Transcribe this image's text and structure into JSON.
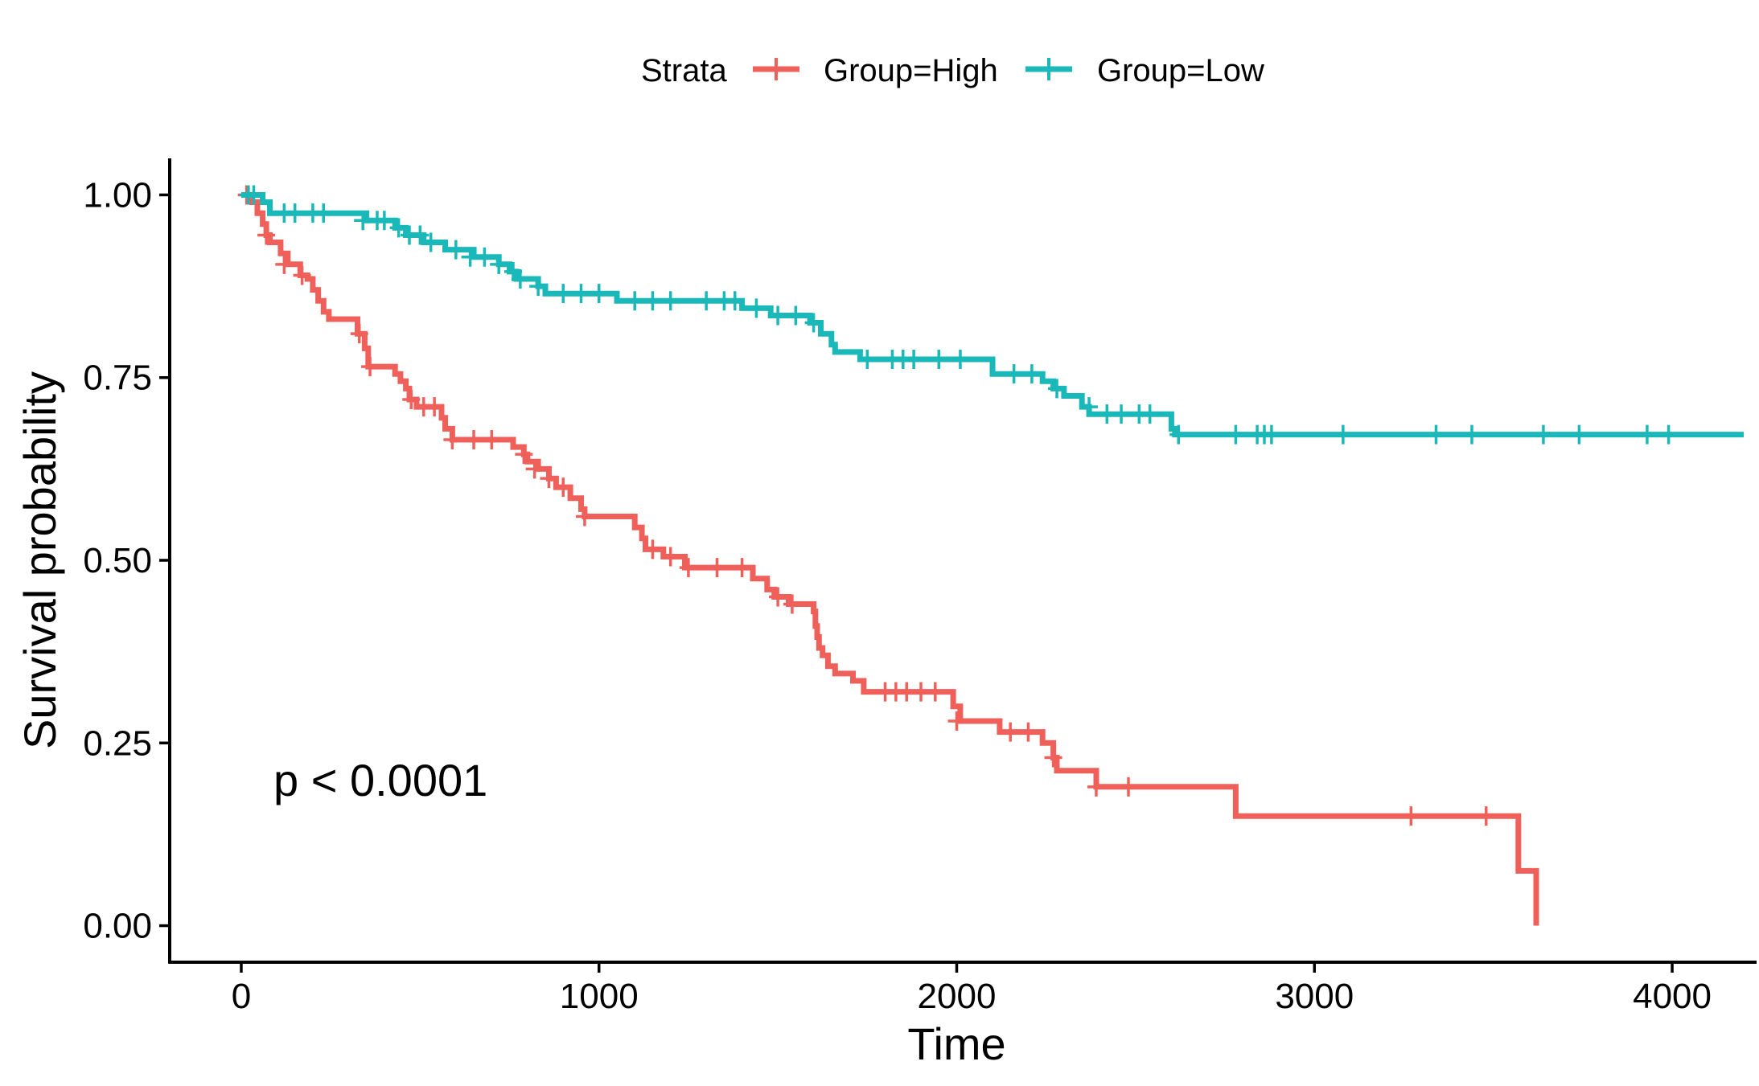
{
  "chart_data": {
    "type": "line",
    "subtype": "kaplan-meier step curve",
    "xlabel": "Time",
    "ylabel": "Survival probability",
    "xlim": [
      -200,
      4200
    ],
    "ylim": [
      -0.05,
      1.05
    ],
    "xticks": [
      0,
      1000,
      2000,
      3000,
      4000
    ],
    "xtick_labels": [
      "0",
      "1000",
      "2000",
      "3000",
      "4000"
    ],
    "yticks": [
      0,
      0.25,
      0.5,
      0.75,
      1.0
    ],
    "ytick_labels": [
      "0.00",
      "0.25",
      "0.50",
      "0.75",
      "1.00"
    ],
    "grid": false,
    "legend": {
      "title": "Strata",
      "position": "top"
    },
    "annotation": "p < 0.0001",
    "series": [
      {
        "name": "Group=High",
        "color": "#F0605A",
        "steps": [
          [
            0,
            1.0
          ],
          [
            30,
            0.99
          ],
          [
            45,
            0.975
          ],
          [
            60,
            0.96
          ],
          [
            70,
            0.945
          ],
          [
            80,
            0.935
          ],
          [
            110,
            0.92
          ],
          [
            130,
            0.905
          ],
          [
            165,
            0.89
          ],
          [
            185,
            0.885
          ],
          [
            200,
            0.87
          ],
          [
            215,
            0.855
          ],
          [
            230,
            0.84
          ],
          [
            245,
            0.83
          ],
          [
            325,
            0.81
          ],
          [
            345,
            0.79
          ],
          [
            355,
            0.765
          ],
          [
            430,
            0.755
          ],
          [
            445,
            0.745
          ],
          [
            460,
            0.735
          ],
          [
            470,
            0.72
          ],
          [
            490,
            0.71
          ],
          [
            560,
            0.695
          ],
          [
            570,
            0.68
          ],
          [
            590,
            0.665
          ],
          [
            760,
            0.655
          ],
          [
            790,
            0.645
          ],
          [
            800,
            0.635
          ],
          [
            830,
            0.625
          ],
          [
            860,
            0.612
          ],
          [
            880,
            0.6
          ],
          [
            920,
            0.585
          ],
          [
            950,
            0.57
          ],
          [
            960,
            0.56
          ],
          [
            1100,
            0.545
          ],
          [
            1120,
            0.53
          ],
          [
            1130,
            0.515
          ],
          [
            1180,
            0.505
          ],
          [
            1240,
            0.49
          ],
          [
            1430,
            0.475
          ],
          [
            1470,
            0.46
          ],
          [
            1490,
            0.45
          ],
          [
            1530,
            0.44
          ],
          [
            1600,
            0.43
          ],
          [
            1605,
            0.41
          ],
          [
            1610,
            0.395
          ],
          [
            1615,
            0.38
          ],
          [
            1625,
            0.37
          ],
          [
            1640,
            0.355
          ],
          [
            1660,
            0.345
          ],
          [
            1710,
            0.335
          ],
          [
            1740,
            0.32
          ],
          [
            1990,
            0.3
          ],
          [
            2010,
            0.28
          ],
          [
            2120,
            0.265
          ],
          [
            2240,
            0.25
          ],
          [
            2270,
            0.23
          ],
          [
            2280,
            0.212
          ],
          [
            2390,
            0.19
          ],
          [
            2780,
            0.15
          ],
          [
            3570,
            0.075
          ],
          [
            3620,
            0.0
          ]
        ],
        "censored": [
          [
            15,
            1.0
          ],
          [
            70,
            0.945
          ],
          [
            120,
            0.905
          ],
          [
            170,
            0.89
          ],
          [
            330,
            0.81
          ],
          [
            360,
            0.765
          ],
          [
            475,
            0.72
          ],
          [
            510,
            0.71
          ],
          [
            540,
            0.71
          ],
          [
            590,
            0.665
          ],
          [
            650,
            0.665
          ],
          [
            700,
            0.665
          ],
          [
            790,
            0.645
          ],
          [
            820,
            0.625
          ],
          [
            860,
            0.612
          ],
          [
            900,
            0.6
          ],
          [
            960,
            0.56
          ],
          [
            1150,
            0.515
          ],
          [
            1200,
            0.505
          ],
          [
            1250,
            0.49
          ],
          [
            1330,
            0.49
          ],
          [
            1400,
            0.49
          ],
          [
            1500,
            0.45
          ],
          [
            1540,
            0.44
          ],
          [
            1800,
            0.32
          ],
          [
            1830,
            0.32
          ],
          [
            1860,
            0.32
          ],
          [
            1900,
            0.32
          ],
          [
            1940,
            0.32
          ],
          [
            2000,
            0.28
          ],
          [
            2150,
            0.265
          ],
          [
            2200,
            0.265
          ],
          [
            2270,
            0.23
          ],
          [
            2390,
            0.19
          ],
          [
            2480,
            0.19
          ],
          [
            3270,
            0.15
          ],
          [
            3480,
            0.15
          ]
        ]
      },
      {
        "name": "Group=Low",
        "color": "#1AB8B8",
        "steps": [
          [
            0,
            1.0
          ],
          [
            60,
            0.99
          ],
          [
            80,
            0.975
          ],
          [
            350,
            0.965
          ],
          [
            430,
            0.955
          ],
          [
            460,
            0.945
          ],
          [
            510,
            0.935
          ],
          [
            570,
            0.925
          ],
          [
            650,
            0.915
          ],
          [
            720,
            0.905
          ],
          [
            750,
            0.895
          ],
          [
            770,
            0.885
          ],
          [
            830,
            0.875
          ],
          [
            850,
            0.865
          ],
          [
            1050,
            0.855
          ],
          [
            1400,
            0.845
          ],
          [
            1480,
            0.835
          ],
          [
            1590,
            0.825
          ],
          [
            1620,
            0.81
          ],
          [
            1650,
            0.795
          ],
          [
            1660,
            0.785
          ],
          [
            1730,
            0.775
          ],
          [
            2100,
            0.755
          ],
          [
            2240,
            0.745
          ],
          [
            2270,
            0.735
          ],
          [
            2300,
            0.725
          ],
          [
            2350,
            0.71
          ],
          [
            2370,
            0.7
          ],
          [
            2600,
            0.68
          ],
          [
            2610,
            0.672
          ]
        ],
        "censored": [
          [
            20,
            1.0
          ],
          [
            35,
            1.0
          ],
          [
            120,
            0.975
          ],
          [
            150,
            0.975
          ],
          [
            200,
            0.975
          ],
          [
            230,
            0.975
          ],
          [
            340,
            0.965
          ],
          [
            380,
            0.965
          ],
          [
            400,
            0.965
          ],
          [
            440,
            0.955
          ],
          [
            470,
            0.945
          ],
          [
            500,
            0.945
          ],
          [
            530,
            0.935
          ],
          [
            600,
            0.925
          ],
          [
            640,
            0.915
          ],
          [
            680,
            0.915
          ],
          [
            720,
            0.905
          ],
          [
            760,
            0.895
          ],
          [
            780,
            0.885
          ],
          [
            830,
            0.875
          ],
          [
            900,
            0.865
          ],
          [
            950,
            0.865
          ],
          [
            1000,
            0.865
          ],
          [
            1100,
            0.855
          ],
          [
            1150,
            0.855
          ],
          [
            1200,
            0.855
          ],
          [
            1300,
            0.855
          ],
          [
            1350,
            0.855
          ],
          [
            1380,
            0.855
          ],
          [
            1440,
            0.845
          ],
          [
            1500,
            0.835
          ],
          [
            1550,
            0.835
          ],
          [
            1600,
            0.825
          ],
          [
            1750,
            0.775
          ],
          [
            1820,
            0.775
          ],
          [
            1850,
            0.775
          ],
          [
            1880,
            0.775
          ],
          [
            1950,
            0.775
          ],
          [
            2010,
            0.775
          ],
          [
            2160,
            0.755
          ],
          [
            2210,
            0.755
          ],
          [
            2280,
            0.735
          ],
          [
            2370,
            0.71
          ],
          [
            2420,
            0.7
          ],
          [
            2460,
            0.7
          ],
          [
            2510,
            0.7
          ],
          [
            2540,
            0.7
          ],
          [
            2620,
            0.672
          ],
          [
            2780,
            0.672
          ],
          [
            2840,
            0.672
          ],
          [
            2860,
            0.672
          ],
          [
            2880,
            0.672
          ],
          [
            3080,
            0.672
          ],
          [
            3340,
            0.672
          ],
          [
            3440,
            0.672
          ],
          [
            3640,
            0.672
          ],
          [
            3740,
            0.672
          ],
          [
            3930,
            0.672
          ],
          [
            3990,
            0.672
          ]
        ]
      }
    ]
  }
}
